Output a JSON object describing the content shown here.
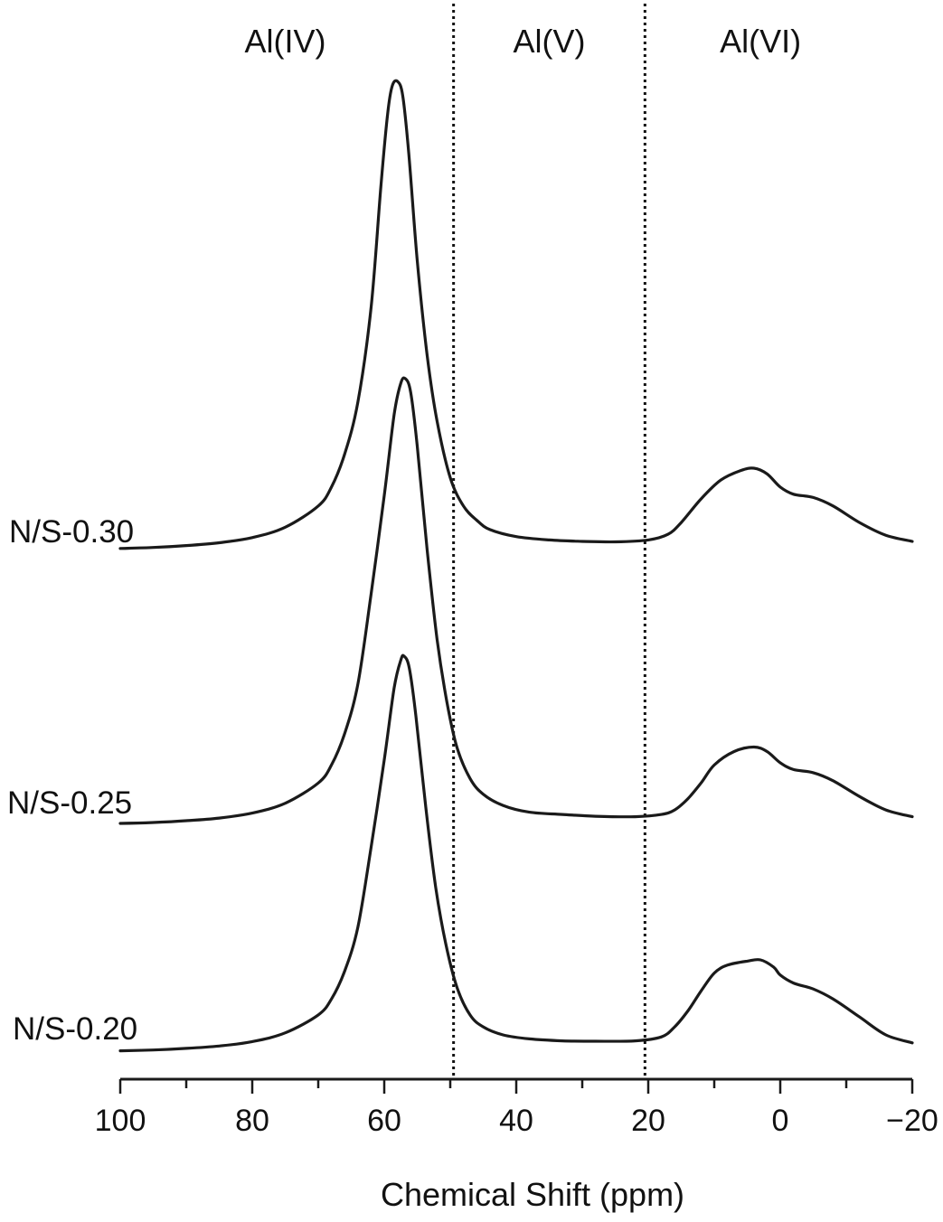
{
  "chart_data": {
    "type": "line",
    "title": "",
    "xlabel": "Chemical Shift (ppm)",
    "ylabel": "",
    "xlim": [
      100,
      -20
    ],
    "x_reversed": true,
    "grid": false,
    "x_ticks": [
      100,
      80,
      60,
      40,
      20,
      0,
      -20
    ],
    "x_tick_labels": [
      "100",
      "80",
      "60",
      "40",
      "20",
      "0",
      "−20"
    ],
    "minor_tick_step": 10,
    "regions": [
      {
        "label": "Al(IV)",
        "center": 75
      },
      {
        "label": "Al(V)",
        "center": 35
      },
      {
        "label": "Al(VI)",
        "center": 3
      }
    ],
    "region_dividers": [
      49.5,
      20.5
    ],
    "series": [
      {
        "name": "N/S-0.30",
        "points": [
          [
            100,
            0.01
          ],
          [
            95,
            0.012
          ],
          [
            90,
            0.016
          ],
          [
            85,
            0.022
          ],
          [
            80,
            0.033
          ],
          [
            75,
            0.055
          ],
          [
            70,
            0.1
          ],
          [
            68,
            0.14
          ],
          [
            66,
            0.21
          ],
          [
            64,
            0.32
          ],
          [
            62,
            0.52
          ],
          [
            60.5,
            0.78
          ],
          [
            59.5,
            0.93
          ],
          [
            58.8,
            0.99
          ],
          [
            58,
            1.0
          ],
          [
            57.2,
            0.97
          ],
          [
            56.3,
            0.85
          ],
          [
            55,
            0.62
          ],
          [
            53.5,
            0.42
          ],
          [
            52,
            0.28
          ],
          [
            50,
            0.16
          ],
          [
            48,
            0.1
          ],
          [
            46,
            0.07
          ],
          [
            44,
            0.05
          ],
          [
            40,
            0.035
          ],
          [
            35,
            0.028
          ],
          [
            30,
            0.025
          ],
          [
            25,
            0.024
          ],
          [
            20,
            0.028
          ],
          [
            17,
            0.04
          ],
          [
            15,
            0.065
          ],
          [
            12,
            0.115
          ],
          [
            9,
            0.155
          ],
          [
            6,
            0.175
          ],
          [
            4,
            0.18
          ],
          [
            2,
            0.168
          ],
          [
            0,
            0.14
          ],
          [
            -2,
            0.125
          ],
          [
            -5,
            0.118
          ],
          [
            -8,
            0.1
          ],
          [
            -12,
            0.065
          ],
          [
            -16,
            0.038
          ],
          [
            -20,
            0.025
          ]
        ]
      },
      {
        "name": "N/S-0.25",
        "points": [
          [
            100,
            0.01
          ],
          [
            95,
            0.012
          ],
          [
            90,
            0.016
          ],
          [
            85,
            0.022
          ],
          [
            80,
            0.033
          ],
          [
            75,
            0.055
          ],
          [
            70,
            0.1
          ],
          [
            68,
            0.14
          ],
          [
            66,
            0.21
          ],
          [
            64,
            0.32
          ],
          [
            62,
            0.52
          ],
          [
            60,
            0.74
          ],
          [
            58.5,
            0.92
          ],
          [
            57.5,
            0.99
          ],
          [
            56.8,
            1.0
          ],
          [
            56,
            0.97
          ],
          [
            55,
            0.85
          ],
          [
            53.5,
            0.62
          ],
          [
            52,
            0.42
          ],
          [
            50.5,
            0.28
          ],
          [
            49,
            0.18
          ],
          [
            47,
            0.11
          ],
          [
            45,
            0.075
          ],
          [
            42,
            0.05
          ],
          [
            38,
            0.035
          ],
          [
            33,
            0.03
          ],
          [
            28,
            0.026
          ],
          [
            22,
            0.025
          ],
          [
            18,
            0.03
          ],
          [
            16,
            0.04
          ],
          [
            14,
            0.065
          ],
          [
            12,
            0.1
          ],
          [
            10,
            0.14
          ],
          [
            7,
            0.17
          ],
          [
            4,
            0.18
          ],
          [
            2,
            0.17
          ],
          [
            0,
            0.145
          ],
          [
            -2,
            0.13
          ],
          [
            -5,
            0.123
          ],
          [
            -8,
            0.105
          ],
          [
            -12,
            0.07
          ],
          [
            -16,
            0.04
          ],
          [
            -20,
            0.025
          ]
        ]
      },
      {
        "name": "N/S-0.20",
        "points": [
          [
            100,
            0.01
          ],
          [
            95,
            0.012
          ],
          [
            90,
            0.016
          ],
          [
            85,
            0.022
          ],
          [
            80,
            0.033
          ],
          [
            75,
            0.055
          ],
          [
            70,
            0.1
          ],
          [
            68,
            0.14
          ],
          [
            66,
            0.21
          ],
          [
            64,
            0.32
          ],
          [
            62,
            0.52
          ],
          [
            60,
            0.74
          ],
          [
            58.5,
            0.92
          ],
          [
            57.5,
            0.99
          ],
          [
            57,
            1.0
          ],
          [
            56.2,
            0.97
          ],
          [
            55.2,
            0.85
          ],
          [
            53.7,
            0.62
          ],
          [
            52.2,
            0.42
          ],
          [
            50.7,
            0.28
          ],
          [
            49,
            0.17
          ],
          [
            47,
            0.1
          ],
          [
            45,
            0.07
          ],
          [
            42,
            0.05
          ],
          [
            38,
            0.04
          ],
          [
            33,
            0.035
          ],
          [
            28,
            0.034
          ],
          [
            22,
            0.035
          ],
          [
            18,
            0.045
          ],
          [
            16,
            0.07
          ],
          [
            14,
            0.11
          ],
          [
            12,
            0.16
          ],
          [
            10,
            0.205
          ],
          [
            8,
            0.225
          ],
          [
            5,
            0.235
          ],
          [
            3,
            0.238
          ],
          [
            1,
            0.22
          ],
          [
            0,
            0.2
          ],
          [
            -2,
            0.18
          ],
          [
            -5,
            0.165
          ],
          [
            -8,
            0.14
          ],
          [
            -12,
            0.095
          ],
          [
            -16,
            0.05
          ],
          [
            -20,
            0.03
          ]
        ]
      }
    ]
  }
}
